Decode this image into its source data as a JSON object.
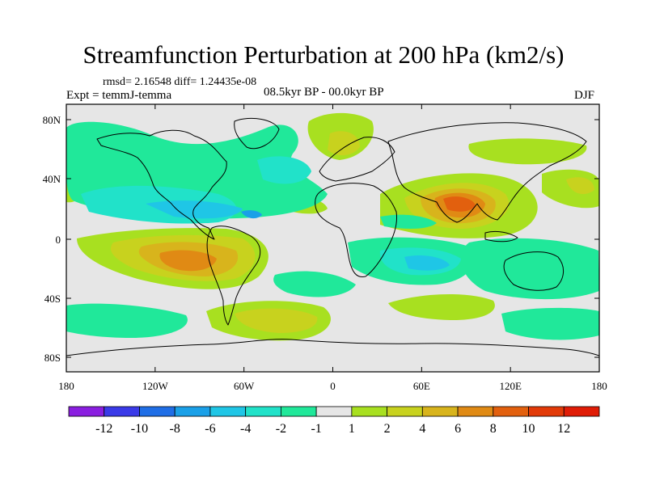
{
  "title": "Streamfunction Perturbation at 200 hPa (km2/s)",
  "stats": "rmsd= 2.16548  diff= 1.24435e-08",
  "experiment": "Expt = temmJ-temma",
  "period": "08.5kyr BP - 00.0kyr BP",
  "season": "DJF",
  "axes": {
    "x_ticks": [
      "180",
      "120W",
      "60W",
      "0",
      "60E",
      "120E",
      "180"
    ],
    "y_ticks": [
      "80N",
      "40N",
      "0",
      "40S",
      "80S"
    ]
  },
  "colorbar": {
    "labels": [
      "-12",
      "-10",
      "-8",
      "-6",
      "-4",
      "-2",
      "-1",
      "1",
      "2",
      "4",
      "6",
      "8",
      "10",
      "12"
    ],
    "colors": [
      "#8a1ee0",
      "#3a3ae8",
      "#1f6ee6",
      "#1aa0e8",
      "#1fc6e6",
      "#21e2c9",
      "#20e89a",
      "#e6e6e6",
      "#a8e020",
      "#c8d21e",
      "#d8b41c",
      "#e08a14",
      "#e2600e",
      "#e23a08",
      "#e01c06"
    ]
  },
  "chart_data": {
    "type": "heatmap",
    "title": "Streamfunction Perturbation at 200 hPa (km2/s)",
    "units": "km2/s",
    "xrange": [
      -180,
      180
    ],
    "yrange": [
      -90,
      90
    ],
    "levels": [
      -12,
      -10,
      -8,
      -6,
      -4,
      -2,
      -1,
      1,
      2,
      4,
      6,
      8,
      10,
      12
    ]
  }
}
